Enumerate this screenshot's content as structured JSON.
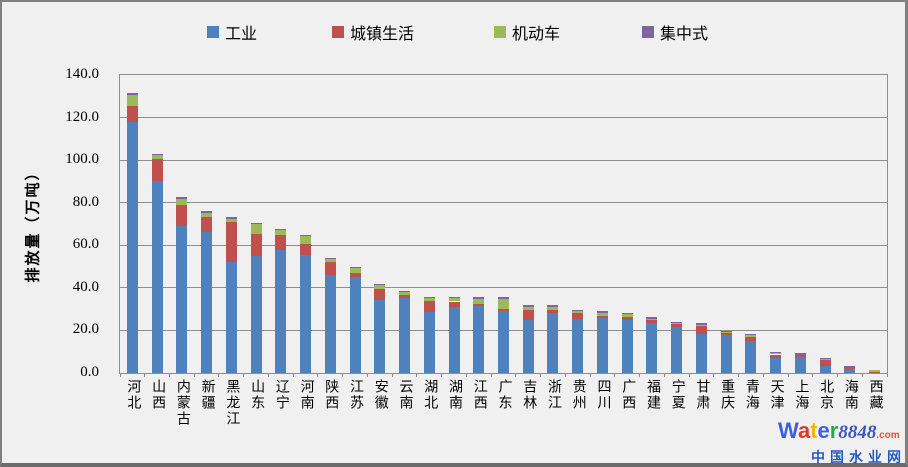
{
  "page": {
    "background": "#f0f0f0"
  },
  "y_axis": {
    "title": "排放量（万吨）",
    "tick_labels": [
      "0.0",
      "20.0",
      "40.0",
      "60.0",
      "80.0",
      "100.0",
      "120.0",
      "140.0"
    ]
  },
  "chart_data": {
    "type": "bar",
    "stacked": true,
    "title": "",
    "xlabel": "",
    "ylabel": "排放量（万吨）",
    "ylim": [
      0,
      140
    ],
    "y_tick_step": 20,
    "grid": true,
    "legend_position": "top",
    "categories": [
      "河北",
      "山西",
      "内蒙古",
      "新疆",
      "黑龙江",
      "山东",
      "辽宁",
      "河南",
      "陕西",
      "江苏",
      "安徽",
      "云南",
      "湖北",
      "湖南",
      "江西",
      "广东",
      "吉林",
      "浙江",
      "贵州",
      "四川",
      "广西",
      "福建",
      "宁夏",
      "甘肃",
      "重庆",
      "青海",
      "天津",
      "上海",
      "北京",
      "海南",
      "西藏"
    ],
    "series": [
      {
        "name": "工业",
        "color": "#4F81BD",
        "values": [
          118.0,
          90.0,
          68.9,
          66.2,
          52.1,
          54.8,
          57.6,
          55.6,
          45.9,
          44.9,
          34.5,
          35.2,
          28.7,
          30.9,
          31.7,
          29.0,
          24.7,
          28.3,
          25.6,
          25.9,
          25.0,
          23.5,
          21.6,
          18.2,
          18.0,
          15.0,
          6.9,
          7.7,
          3.3,
          1.9,
          0.2
        ]
      },
      {
        "name": "城镇生活",
        "color": "#C0504D",
        "values": [
          7.5,
          10.4,
          10.2,
          7.1,
          18.7,
          10.6,
          7.1,
          5.0,
          6.1,
          2.1,
          5.0,
          1.4,
          5.0,
          2.7,
          0.9,
          1.3,
          5.0,
          1.1,
          2.5,
          1.0,
          1.5,
          1.3,
          1.2,
          3.9,
          0.8,
          1.9,
          1.8,
          0.6,
          2.8,
          0.9,
          0.2
        ]
      },
      {
        "name": "机动车",
        "color": "#9BBB59",
        "values": [
          5.3,
          2.0,
          2.8,
          2.0,
          1.7,
          4.4,
          2.3,
          3.6,
          1.6,
          2.2,
          1.8,
          1.5,
          1.6,
          1.7,
          2.4,
          4.7,
          1.5,
          1.8,
          0.9,
          1.5,
          1.3,
          0.8,
          0.5,
          0.6,
          0.5,
          0.9,
          0.5,
          0.3,
          0.5,
          0.1,
          0.8
        ]
      },
      {
        "name": "集中式",
        "color": "#8064A2",
        "values": [
          0.8,
          0.6,
          0.6,
          0.6,
          0.6,
          0.6,
          0.6,
          0.7,
          0.6,
          0.6,
          0.6,
          0.6,
          0.6,
          0.6,
          0.6,
          0.6,
          0.6,
          0.6,
          0.6,
          0.6,
          0.6,
          0.6,
          0.6,
          0.6,
          0.6,
          0.2,
          0.5,
          0.6,
          0.6,
          0.2,
          0.0
        ]
      }
    ]
  },
  "watermark": {
    "brand_letters": [
      {
        "ch": "W",
        "color": "#3c5fd7"
      },
      {
        "ch": "a",
        "color": "#e3342f"
      },
      {
        "ch": "t",
        "color": "#f2b50f"
      },
      {
        "ch": "e",
        "color": "#3c5fd7"
      },
      {
        "ch": "r",
        "color": "#2fa84f"
      }
    ],
    "brand_suffix": "8848",
    "brand_tld": ".com",
    "tagline": "中国水业网"
  }
}
